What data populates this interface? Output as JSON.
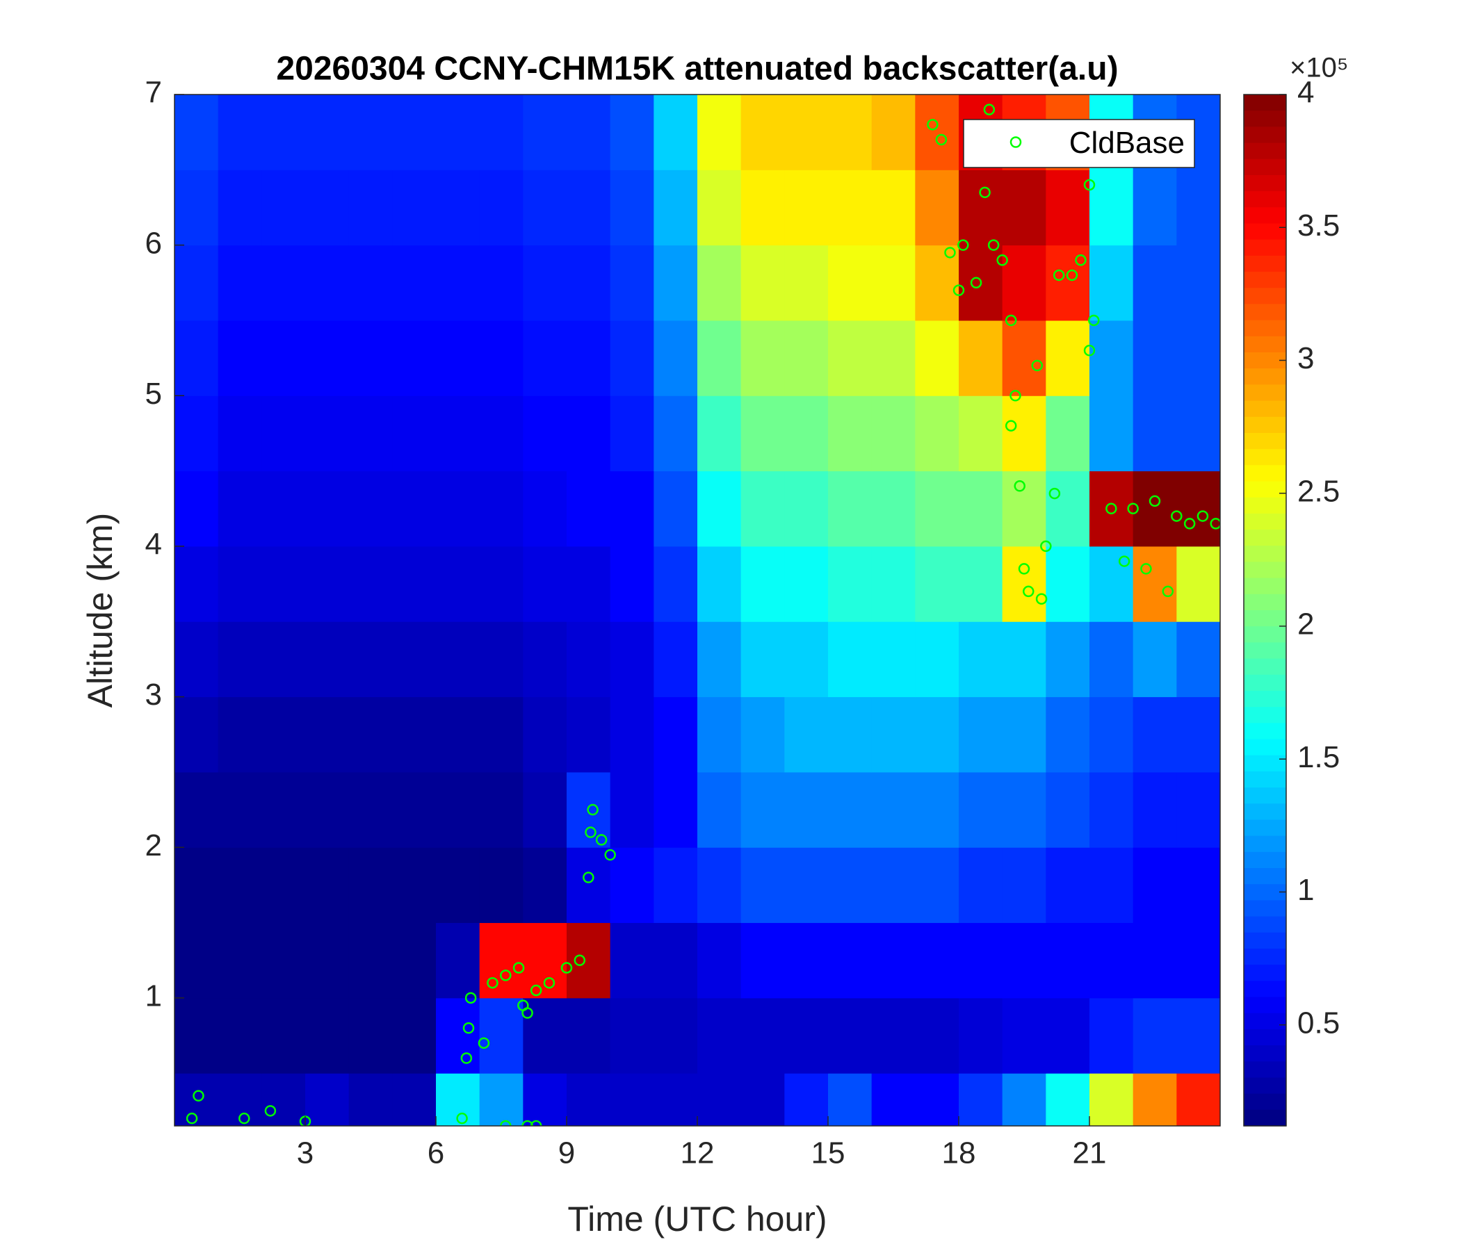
{
  "chart_data": {
    "type": "heatmap",
    "title": "20260304 CCNY-CHM15K attenuated backscatter(a.u)",
    "xlabel": "Time (UTC hour)",
    "ylabel": "Altitude (km)",
    "xlim": [
      0,
      24
    ],
    "xticks": [
      3,
      6,
      9,
      12,
      15,
      18,
      21
    ],
    "ylim": [
      0.15,
      7
    ],
    "yticks": [
      1,
      2,
      3,
      4,
      5,
      6,
      7
    ],
    "x": [
      0.5,
      1.5,
      2.5,
      3.5,
      4.5,
      5.5,
      6.5,
      7.5,
      8.5,
      9.5,
      10.5,
      11.5,
      12.5,
      13.5,
      14.5,
      15.5,
      16.5,
      17.5,
      18.5,
      19.5,
      20.5,
      21.5,
      22.5,
      23.5
    ],
    "y": [
      0.25,
      0.75,
      1.25,
      1.75,
      2.25,
      2.75,
      3.25,
      3.75,
      4.25,
      4.75,
      5.25,
      5.75,
      6.25,
      6.75
    ],
    "z": [
      [
        0.3,
        0.3,
        0.3,
        0.4,
        0.3,
        0.3,
        1.5,
        1.2,
        0.5,
        0.4,
        0.4,
        0.4,
        0.4,
        0.4,
        0.7,
        0.9,
        0.6,
        0.6,
        0.8,
        1.1,
        1.6,
        2.4,
        3.0,
        3.4
      ],
      [
        0.15,
        0.15,
        0.15,
        0.15,
        0.15,
        0.15,
        0.6,
        0.8,
        0.3,
        0.3,
        0.35,
        0.35,
        0.4,
        0.4,
        0.4,
        0.4,
        0.4,
        0.4,
        0.45,
        0.5,
        0.5,
        0.7,
        0.8,
        0.8
      ],
      [
        0.15,
        0.15,
        0.15,
        0.15,
        0.15,
        0.15,
        0.3,
        3.5,
        3.5,
        3.8,
        0.4,
        0.4,
        0.5,
        0.6,
        0.6,
        0.6,
        0.6,
        0.6,
        0.6,
        0.6,
        0.6,
        0.6,
        0.6,
        0.6
      ],
      [
        0.15,
        0.15,
        0.15,
        0.15,
        0.15,
        0.15,
        0.15,
        0.15,
        0.2,
        0.5,
        0.6,
        0.7,
        0.8,
        0.9,
        0.9,
        0.9,
        0.9,
        0.9,
        0.8,
        0.8,
        0.7,
        0.7,
        0.6,
        0.6
      ],
      [
        0.2,
        0.2,
        0.2,
        0.2,
        0.2,
        0.2,
        0.2,
        0.2,
        0.3,
        0.8,
        0.5,
        0.6,
        1.0,
        1.1,
        1.1,
        1.1,
        1.1,
        1.1,
        1.0,
        1.0,
        0.9,
        0.8,
        0.7,
        0.7
      ],
      [
        0.3,
        0.25,
        0.25,
        0.25,
        0.25,
        0.25,
        0.25,
        0.25,
        0.35,
        0.4,
        0.5,
        0.6,
        1.1,
        1.2,
        1.3,
        1.3,
        1.3,
        1.3,
        1.2,
        1.2,
        1.0,
        0.9,
        0.8,
        0.8
      ],
      [
        0.4,
        0.35,
        0.35,
        0.35,
        0.35,
        0.35,
        0.35,
        0.35,
        0.4,
        0.45,
        0.5,
        0.7,
        1.2,
        1.4,
        1.4,
        1.5,
        1.5,
        1.5,
        1.4,
        1.4,
        1.2,
        1.0,
        1.2,
        1.0
      ],
      [
        0.5,
        0.45,
        0.45,
        0.45,
        0.45,
        0.45,
        0.45,
        0.45,
        0.5,
        0.5,
        0.6,
        0.8,
        1.4,
        1.6,
        1.6,
        1.7,
        1.7,
        1.8,
        1.8,
        2.6,
        1.6,
        1.4,
        3.0,
        2.4
      ],
      [
        0.6,
        0.5,
        0.5,
        0.5,
        0.5,
        0.5,
        0.5,
        0.5,
        0.55,
        0.6,
        0.6,
        0.9,
        1.6,
        1.8,
        1.8,
        1.9,
        1.9,
        2.0,
        2.0,
        2.2,
        1.8,
        3.8,
        4,
        4
      ],
      [
        0.65,
        0.55,
        0.55,
        0.55,
        0.55,
        0.55,
        0.55,
        0.55,
        0.6,
        0.6,
        0.7,
        1.0,
        1.8,
        2.0,
        2.0,
        2.1,
        2.1,
        2.2,
        2.3,
        2.6,
        2.0,
        1.2,
        0.9,
        0.9
      ],
      [
        0.7,
        0.6,
        0.6,
        0.6,
        0.6,
        0.6,
        0.6,
        0.6,
        0.65,
        0.65,
        0.75,
        1.1,
        2.0,
        2.2,
        2.2,
        2.3,
        2.3,
        2.5,
        2.8,
        3.2,
        2.6,
        1.2,
        0.9,
        0.9
      ],
      [
        0.75,
        0.65,
        0.65,
        0.65,
        0.65,
        0.65,
        0.65,
        0.65,
        0.7,
        0.7,
        0.8,
        1.2,
        2.2,
        2.4,
        2.4,
        2.5,
        2.5,
        2.8,
        3.8,
        3.6,
        3.4,
        1.4,
        0.9,
        0.9
      ],
      [
        0.8,
        0.7,
        0.7,
        0.7,
        0.7,
        0.7,
        0.7,
        0.7,
        0.75,
        0.75,
        0.85,
        1.3,
        2.4,
        2.6,
        2.6,
        2.6,
        2.6,
        3.0,
        3.8,
        3.8,
        3.6,
        1.6,
        1.0,
        0.9
      ],
      [
        0.85,
        0.75,
        0.75,
        0.75,
        0.75,
        0.75,
        0.75,
        0.75,
        0.8,
        0.8,
        0.9,
        1.4,
        2.5,
        2.7,
        2.7,
        2.7,
        2.8,
        3.2,
        3.6,
        3.4,
        3.2,
        1.6,
        1.0,
        0.9
      ]
    ],
    "clim": [
      0.12,
      4
    ],
    "colorbar_ticks": [
      0.5,
      1,
      1.5,
      2,
      2.5,
      3,
      3.5,
      4
    ],
    "colorbar_exponent": "×10⁵",
    "series": [
      {
        "name": "CldBase",
        "color": "#00ff00",
        "x": [
          0.4,
          0.55,
          1.6,
          2.2,
          3.0,
          6.6,
          6.7,
          6.75,
          6.8,
          7.1,
          7.3,
          7.6,
          7.9,
          8.0,
          8.1,
          8.3,
          8.6,
          9.0,
          9.3,
          9.5,
          9.55,
          9.6,
          9.8,
          10.0,
          7.6,
          8.1,
          8.3,
          17.4,
          17.6,
          17.8,
          18.0,
          18.1,
          18.4,
          18.6,
          18.7,
          18.8,
          19.0,
          19.2,
          19.3,
          19.2,
          19.4,
          19.5,
          19.6,
          19.8,
          19.9,
          20.0,
          20.2,
          20.3,
          20.6,
          20.8,
          21.0,
          21.1,
          21.5,
          21.8,
          22.0,
          22.3,
          22.5,
          22.8,
          23.0,
          23.3,
          23.6,
          23.9,
          21.0
        ],
        "y": [
          0.2,
          0.35,
          0.2,
          0.25,
          0.18,
          0.2,
          0.6,
          0.8,
          1.0,
          0.7,
          1.1,
          1.15,
          1.2,
          0.95,
          0.9,
          1.05,
          1.1,
          1.2,
          1.25,
          1.8,
          2.1,
          2.25,
          2.05,
          1.95,
          0.15,
          0.15,
          0.15,
          6.8,
          6.7,
          5.95,
          5.7,
          6.0,
          5.75,
          6.35,
          6.9,
          6.0,
          5.9,
          5.5,
          5.0,
          4.8,
          4.4,
          3.85,
          3.7,
          5.2,
          3.65,
          4.0,
          4.35,
          5.8,
          5.8,
          5.9,
          5.3,
          5.5,
          4.25,
          3.9,
          4.25,
          3.85,
          4.3,
          3.7,
          4.2,
          4.15,
          4.2,
          4.15,
          6.4
        ]
      }
    ],
    "legend": "upper right"
  }
}
